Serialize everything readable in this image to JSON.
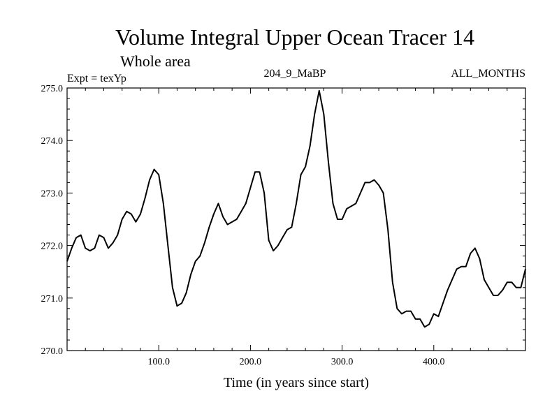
{
  "chart_data": {
    "type": "line",
    "title": "Volume Integral Upper Ocean Tracer 14",
    "subtitle": "Whole area",
    "annotations": {
      "left": "Expt = texYp",
      "center": "204_9_MaBP",
      "right": "ALL_MONTHS"
    },
    "xlabel": "Time (in years since start)",
    "ylabel": "",
    "xlim": [
      0,
      500
    ],
    "ylim": [
      270.0,
      275.0
    ],
    "x_ticks": [
      100,
      200,
      300,
      400
    ],
    "x_tick_labels": [
      "100.0",
      "200.0",
      "300.0",
      "400.0"
    ],
    "y_ticks": [
      270,
      271,
      272,
      273,
      274,
      275
    ],
    "y_tick_labels": [
      "270.0",
      "271.0",
      "272.0",
      "273.0",
      "274.0",
      "275.0"
    ],
    "grid": false,
    "series": [
      {
        "line_color": "#000000",
        "x": [
          0,
          5,
          10,
          15,
          20,
          25,
          30,
          35,
          40,
          45,
          50,
          55,
          60,
          65,
          70,
          75,
          80,
          85,
          90,
          95,
          100,
          105,
          110,
          115,
          120,
          125,
          130,
          135,
          140,
          145,
          150,
          155,
          160,
          165,
          170,
          175,
          180,
          185,
          190,
          195,
          200,
          205,
          210,
          215,
          220,
          225,
          230,
          235,
          240,
          245,
          250,
          255,
          260,
          265,
          270,
          275,
          280,
          285,
          290,
          295,
          300,
          305,
          310,
          315,
          320,
          325,
          330,
          335,
          340,
          345,
          350,
          355,
          360,
          365,
          370,
          375,
          380,
          385,
          390,
          395,
          400,
          405,
          410,
          415,
          420,
          425,
          430,
          435,
          440,
          445,
          450,
          455,
          460,
          465,
          470,
          475,
          480,
          485,
          490,
          495,
          500
        ],
        "values": [
          271.7,
          271.95,
          272.15,
          272.2,
          271.95,
          271.9,
          271.95,
          272.2,
          272.15,
          271.95,
          272.05,
          272.2,
          272.5,
          272.65,
          272.6,
          272.45,
          272.6,
          272.9,
          273.25,
          273.45,
          273.35,
          272.8,
          272.0,
          271.2,
          270.85,
          270.9,
          271.1,
          271.45,
          271.7,
          271.8,
          272.05,
          272.35,
          272.6,
          272.8,
          272.55,
          272.4,
          272.45,
          272.5,
          272.65,
          272.8,
          273.1,
          273.4,
          273.4,
          273.0,
          272.1,
          271.9,
          272.0,
          272.15,
          272.3,
          272.35,
          272.8,
          273.35,
          273.5,
          273.9,
          274.5,
          274.95,
          274.5,
          273.6,
          272.8,
          272.5,
          272.5,
          272.7,
          272.75,
          272.8,
          273.0,
          273.2,
          273.2,
          273.25,
          273.15,
          273.0,
          272.3,
          271.3,
          270.8,
          270.7,
          270.75,
          270.75,
          270.6,
          270.6,
          270.45,
          270.5,
          270.7,
          270.65,
          270.9,
          271.15,
          271.35,
          271.55,
          271.6,
          271.6,
          271.85,
          271.95,
          271.75,
          271.35,
          271.2,
          271.05,
          271.05,
          271.15,
          271.3,
          271.3,
          271.2,
          271.2,
          271.55
        ]
      }
    ]
  }
}
